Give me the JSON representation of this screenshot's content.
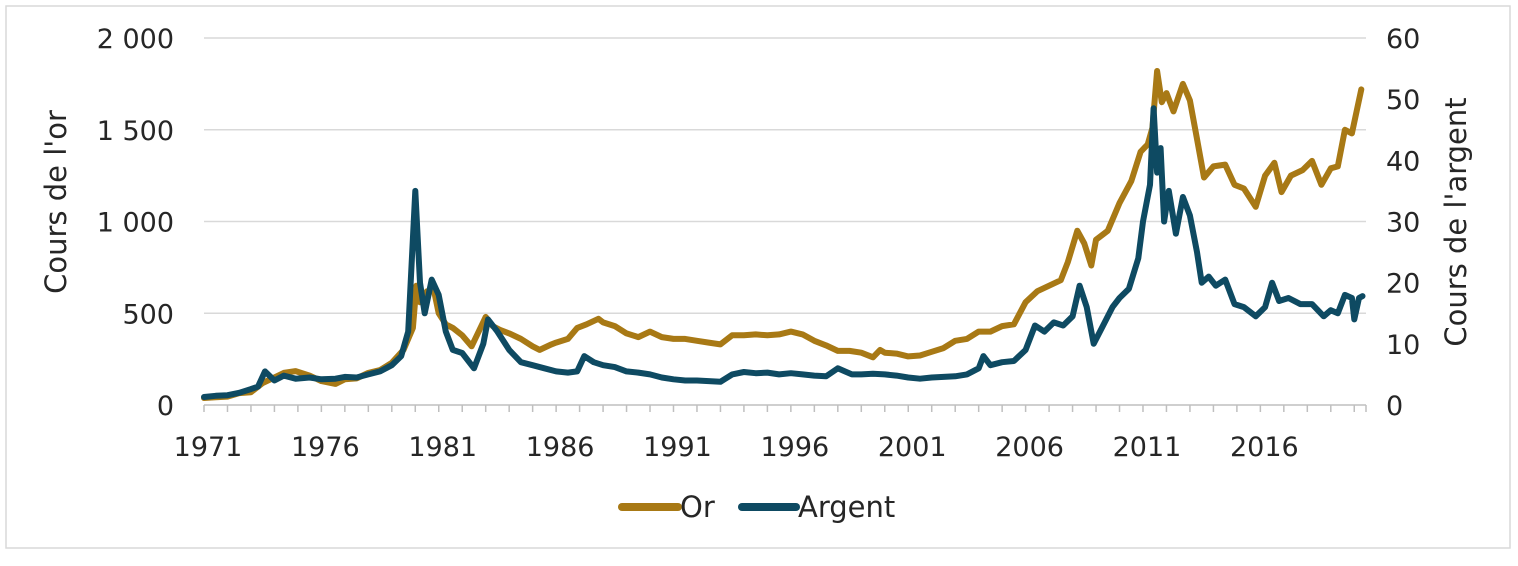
{
  "chart_data": {
    "type": "line",
    "title": "",
    "x_axis": {
      "range": [
        1971,
        2020.5
      ],
      "ticks": [
        1971,
        1976,
        1981,
        1986,
        1991,
        1996,
        2001,
        2006,
        2011,
        2016
      ],
      "tick_labels": [
        "1971",
        "1976",
        "1981",
        "1986",
        "1991",
        "1996",
        "2001",
        "2006",
        "2011",
        "2016"
      ]
    },
    "y_left": {
      "label": "Cours de l'or",
      "range": [
        0,
        2000
      ],
      "ticks": [
        0,
        500,
        1000,
        1500,
        2000
      ],
      "tick_labels": [
        "0",
        "500",
        "1 000",
        "1 500",
        "2 000"
      ]
    },
    "y_right": {
      "label": "Cours de l'argent",
      "range": [
        0,
        60
      ],
      "ticks": [
        0,
        10,
        20,
        30,
        40,
        50,
        60
      ],
      "tick_labels": [
        "0",
        "10",
        "20",
        "30",
        "40",
        "50",
        "60"
      ]
    },
    "grid": "horizontal",
    "legend_position": "bottom",
    "series": [
      {
        "name": "Or",
        "axis": "left",
        "color": "#A87915",
        "points": [
          [
            1971.0,
            38
          ],
          [
            1971.5,
            42
          ],
          [
            1972.0,
            46
          ],
          [
            1972.5,
            65
          ],
          [
            1973.0,
            70
          ],
          [
            1973.5,
            120
          ],
          [
            1974.0,
            150
          ],
          [
            1974.4,
            175
          ],
          [
            1974.9,
            185
          ],
          [
            1975.5,
            160
          ],
          [
            1976.0,
            130
          ],
          [
            1976.6,
            115
          ],
          [
            1977.0,
            140
          ],
          [
            1977.5,
            145
          ],
          [
            1978.0,
            175
          ],
          [
            1978.5,
            190
          ],
          [
            1979.0,
            230
          ],
          [
            1979.5,
            300
          ],
          [
            1979.9,
            420
          ],
          [
            1980.05,
            650
          ],
          [
            1980.2,
            560
          ],
          [
            1980.5,
            620
          ],
          [
            1980.8,
            620
          ],
          [
            1981.0,
            500
          ],
          [
            1981.3,
            440
          ],
          [
            1981.6,
            420
          ],
          [
            1982.0,
            380
          ],
          [
            1982.4,
            320
          ],
          [
            1982.7,
            400
          ],
          [
            1983.0,
            480
          ],
          [
            1983.3,
            430
          ],
          [
            1983.6,
            410
          ],
          [
            1984.0,
            390
          ],
          [
            1984.5,
            360
          ],
          [
            1985.0,
            320
          ],
          [
            1985.3,
            300
          ],
          [
            1985.8,
            330
          ],
          [
            1986.0,
            340
          ],
          [
            1986.5,
            360
          ],
          [
            1986.9,
            420
          ],
          [
            1987.3,
            440
          ],
          [
            1987.8,
            470
          ],
          [
            1988.0,
            450
          ],
          [
            1988.5,
            430
          ],
          [
            1989.0,
            390
          ],
          [
            1989.5,
            370
          ],
          [
            1990.0,
            400
          ],
          [
            1990.5,
            370
          ],
          [
            1991.0,
            360
          ],
          [
            1991.5,
            360
          ],
          [
            1992.0,
            350
          ],
          [
            1992.5,
            340
          ],
          [
            1993.0,
            330
          ],
          [
            1993.5,
            380
          ],
          [
            1994.0,
            380
          ],
          [
            1994.5,
            385
          ],
          [
            1995.0,
            380
          ],
          [
            1995.5,
            385
          ],
          [
            1996.0,
            400
          ],
          [
            1996.5,
            385
          ],
          [
            1997.0,
            350
          ],
          [
            1997.5,
            325
          ],
          [
            1998.0,
            295
          ],
          [
            1998.5,
            295
          ],
          [
            1999.0,
            285
          ],
          [
            1999.5,
            260
          ],
          [
            1999.8,
            300
          ],
          [
            2000.0,
            285
          ],
          [
            2000.5,
            280
          ],
          [
            2001.0,
            265
          ],
          [
            2001.5,
            270
          ],
          [
            2002.0,
            290
          ],
          [
            2002.5,
            310
          ],
          [
            2003.0,
            350
          ],
          [
            2003.5,
            360
          ],
          [
            2004.0,
            400
          ],
          [
            2004.5,
            400
          ],
          [
            2005.0,
            430
          ],
          [
            2005.5,
            440
          ],
          [
            2006.0,
            560
          ],
          [
            2006.5,
            620
          ],
          [
            2007.0,
            650
          ],
          [
            2007.5,
            680
          ],
          [
            2007.8,
            780
          ],
          [
            2008.2,
            950
          ],
          [
            2008.5,
            880
          ],
          [
            2008.8,
            760
          ],
          [
            2009.0,
            900
          ],
          [
            2009.5,
            950
          ],
          [
            2010.0,
            1100
          ],
          [
            2010.5,
            1220
          ],
          [
            2010.9,
            1380
          ],
          [
            2011.2,
            1420
          ],
          [
            2011.4,
            1510
          ],
          [
            2011.6,
            1820
          ],
          [
            2011.8,
            1650
          ],
          [
            2012.0,
            1700
          ],
          [
            2012.3,
            1600
          ],
          [
            2012.7,
            1750
          ],
          [
            2013.0,
            1660
          ],
          [
            2013.3,
            1450
          ],
          [
            2013.6,
            1240
          ],
          [
            2014.0,
            1300
          ],
          [
            2014.5,
            1310
          ],
          [
            2014.9,
            1200
          ],
          [
            2015.3,
            1180
          ],
          [
            2015.8,
            1080
          ],
          [
            2016.2,
            1250
          ],
          [
            2016.6,
            1320
          ],
          [
            2016.9,
            1160
          ],
          [
            2017.3,
            1250
          ],
          [
            2017.8,
            1280
          ],
          [
            2018.2,
            1330
          ],
          [
            2018.6,
            1200
          ],
          [
            2019.0,
            1290
          ],
          [
            2019.3,
            1300
          ],
          [
            2019.6,
            1500
          ],
          [
            2019.9,
            1480
          ],
          [
            2020.1,
            1600
          ],
          [
            2020.3,
            1720
          ]
        ]
      },
      {
        "name": "Argent",
        "axis": "right",
        "color": "#0E4A62",
        "points": [
          [
            1971.0,
            1.3
          ],
          [
            1971.5,
            1.5
          ],
          [
            1972.0,
            1.6
          ],
          [
            1972.5,
            2.0
          ],
          [
            1973.0,
            2.6
          ],
          [
            1973.3,
            3.0
          ],
          [
            1973.6,
            5.5
          ],
          [
            1974.0,
            4.0
          ],
          [
            1974.4,
            4.8
          ],
          [
            1974.9,
            4.3
          ],
          [
            1975.5,
            4.5
          ],
          [
            1976.0,
            4.2
          ],
          [
            1976.6,
            4.3
          ],
          [
            1977.0,
            4.6
          ],
          [
            1977.5,
            4.5
          ],
          [
            1978.0,
            5.0
          ],
          [
            1978.5,
            5.5
          ],
          [
            1979.0,
            6.5
          ],
          [
            1979.4,
            8.0
          ],
          [
            1979.7,
            12.0
          ],
          [
            1980.0,
            35.0
          ],
          [
            1980.2,
            20.0
          ],
          [
            1980.4,
            15.0
          ],
          [
            1980.7,
            20.5
          ],
          [
            1981.0,
            18.0
          ],
          [
            1981.3,
            12.0
          ],
          [
            1981.6,
            9.0
          ],
          [
            1982.0,
            8.5
          ],
          [
            1982.5,
            6.0
          ],
          [
            1982.9,
            10.0
          ],
          [
            1983.1,
            14.0
          ],
          [
            1983.5,
            12.0
          ],
          [
            1984.0,
            9.0
          ],
          [
            1984.5,
            7.0
          ],
          [
            1985.0,
            6.5
          ],
          [
            1985.5,
            6.0
          ],
          [
            1986.0,
            5.5
          ],
          [
            1986.5,
            5.3
          ],
          [
            1986.9,
            5.5
          ],
          [
            1987.2,
            8.0
          ],
          [
            1987.6,
            7.0
          ],
          [
            1988.0,
            6.5
          ],
          [
            1988.5,
            6.2
          ],
          [
            1989.0,
            5.5
          ],
          [
            1989.5,
            5.3
          ],
          [
            1990.0,
            5.0
          ],
          [
            1990.5,
            4.5
          ],
          [
            1991.0,
            4.2
          ],
          [
            1991.5,
            4.0
          ],
          [
            1992.0,
            4.0
          ],
          [
            1992.5,
            3.9
          ],
          [
            1993.0,
            3.8
          ],
          [
            1993.5,
            5.0
          ],
          [
            1994.0,
            5.4
          ],
          [
            1994.5,
            5.2
          ],
          [
            1995.0,
            5.3
          ],
          [
            1995.5,
            5.0
          ],
          [
            1996.0,
            5.2
          ],
          [
            1996.5,
            5.0
          ],
          [
            1997.0,
            4.8
          ],
          [
            1997.5,
            4.7
          ],
          [
            1998.0,
            6.0
          ],
          [
            1998.3,
            5.5
          ],
          [
            1998.6,
            5.0
          ],
          [
            1999.0,
            5.0
          ],
          [
            1999.5,
            5.1
          ],
          [
            2000.0,
            5.0
          ],
          [
            2000.5,
            4.8
          ],
          [
            2001.0,
            4.5
          ],
          [
            2001.5,
            4.3
          ],
          [
            2002.0,
            4.5
          ],
          [
            2002.5,
            4.6
          ],
          [
            2003.0,
            4.7
          ],
          [
            2003.5,
            5.0
          ],
          [
            2004.0,
            6.0
          ],
          [
            2004.2,
            8.0
          ],
          [
            2004.5,
            6.5
          ],
          [
            2005.0,
            7.0
          ],
          [
            2005.5,
            7.2
          ],
          [
            2006.0,
            9.0
          ],
          [
            2006.4,
            13.0
          ],
          [
            2006.8,
            12.0
          ],
          [
            2007.2,
            13.5
          ],
          [
            2007.6,
            13.0
          ],
          [
            2008.0,
            14.5
          ],
          [
            2008.3,
            19.5
          ],
          [
            2008.6,
            16.0
          ],
          [
            2008.9,
            10.0
          ],
          [
            2009.3,
            13.0
          ],
          [
            2009.7,
            16.0
          ],
          [
            2010.0,
            17.5
          ],
          [
            2010.4,
            19.0
          ],
          [
            2010.8,
            24.0
          ],
          [
            2011.0,
            30.0
          ],
          [
            2011.3,
            36.0
          ],
          [
            2011.45,
            48.5
          ],
          [
            2011.6,
            38.0
          ],
          [
            2011.75,
            42.0
          ],
          [
            2011.9,
            30.0
          ],
          [
            2012.1,
            35.0
          ],
          [
            2012.4,
            28.0
          ],
          [
            2012.7,
            34.0
          ],
          [
            2013.0,
            31.0
          ],
          [
            2013.3,
            25.0
          ],
          [
            2013.5,
            20.0
          ],
          [
            2013.8,
            21.0
          ],
          [
            2014.1,
            19.5
          ],
          [
            2014.5,
            20.5
          ],
          [
            2014.9,
            16.5
          ],
          [
            2015.3,
            16.0
          ],
          [
            2015.8,
            14.5
          ],
          [
            2016.2,
            16.0
          ],
          [
            2016.5,
            20.0
          ],
          [
            2016.8,
            17.0
          ],
          [
            2017.2,
            17.5
          ],
          [
            2017.7,
            16.5
          ],
          [
            2018.2,
            16.5
          ],
          [
            2018.7,
            14.5
          ],
          [
            2019.0,
            15.5
          ],
          [
            2019.3,
            15.0
          ],
          [
            2019.6,
            18.0
          ],
          [
            2019.9,
            17.5
          ],
          [
            2020.0,
            14.0
          ],
          [
            2020.2,
            17.5
          ],
          [
            2020.35,
            17.8
          ]
        ]
      }
    ]
  }
}
